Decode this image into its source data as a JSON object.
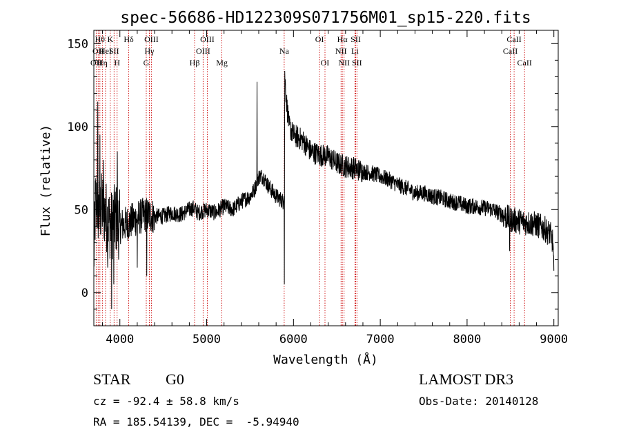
{
  "chart_data": {
    "type": "line",
    "title": "spec-56686-HD122309S071756M01_sp15-220.fits",
    "xlabel": "Wavelength (Å)",
    "ylabel": "Flux (relative)",
    "xlim": [
      3700,
      9050
    ],
    "ylim": [
      -20,
      158
    ],
    "x_ticks": [
      4000,
      5000,
      6000,
      7000,
      8000,
      9000
    ],
    "y_ticks": [
      0,
      50,
      100,
      150
    ],
    "spectrum_anchors": {
      "x": [
        3700,
        3720,
        3760,
        3800,
        3850,
        3900,
        3950,
        4000,
        4100,
        4200,
        4300,
        4400,
        4500,
        4600,
        4700,
        4800,
        4850,
        4900,
        5000,
        5100,
        5200,
        5300,
        5400,
        5500,
        5550,
        5600,
        5650,
        5700,
        5800,
        5880,
        5890,
        5896,
        5900,
        5920,
        5950,
        6000,
        6100,
        6200,
        6300,
        6400,
        6500,
        6600,
        6700,
        6800,
        6900,
        7000,
        7100,
        7200,
        7300,
        7400,
        7500,
        7600,
        7700,
        7800,
        7900,
        8000,
        8100,
        8200,
        8300,
        8400,
        8500,
        8600,
        8700,
        8800,
        8900,
        8960,
        8990,
        9000
      ],
      "y": [
        20,
        55,
        48,
        52,
        45,
        40,
        45,
        40,
        42,
        45,
        47,
        46,
        46,
        48,
        47,
        50,
        51,
        48,
        50,
        48,
        52,
        50,
        55,
        58,
        62,
        70,
        70,
        65,
        58,
        55,
        62,
        50,
        130,
        115,
        100,
        95,
        92,
        85,
        83,
        82,
        78,
        76,
        75,
        73,
        72,
        70,
        68,
        65,
        63,
        60,
        60,
        58,
        57,
        55,
        54,
        52,
        52,
        51,
        50,
        47,
        44,
        43,
        42,
        41,
        38,
        35,
        30,
        10
      ]
    },
    "spikes": [
      {
        "x": 3745,
        "y": 115
      },
      {
        "x": 3770,
        "y": 95
      },
      {
        "x": 3810,
        "y": 80
      },
      {
        "x": 3860,
        "y": 15
      },
      {
        "x": 3905,
        "y": -10
      },
      {
        "x": 3930,
        "y": 5
      },
      {
        "x": 3970,
        "y": 85
      },
      {
        "x": 4200,
        "y": 15
      },
      {
        "x": 4310,
        "y": 10
      },
      {
        "x": 5580,
        "y": 127
      },
      {
        "x": 5895,
        "y": 5
      },
      {
        "x": 8490,
        "y": 25
      }
    ],
    "line_markers": [
      {
        "x": 3727,
        "label": "OII",
        "row": 2
      },
      {
        "x": 3750,
        "label": "OII",
        "row": 1
      },
      {
        "x": 3770,
        "label": "Hθ",
        "row": 0
      },
      {
        "x": 3798,
        "label": "Hη",
        "row": 2
      },
      {
        "x": 3835,
        "label": "HeI",
        "row": 1
      },
      {
        "x": 3889,
        "label": "K",
        "row": 0
      },
      {
        "x": 3933,
        "label": "SII",
        "row": 1
      },
      {
        "x": 3968,
        "label": "H",
        "row": 2
      },
      {
        "x": 4102,
        "label": "Hδ",
        "row": 0
      },
      {
        "x": 4304,
        "label": "G",
        "row": 2
      },
      {
        "x": 4340,
        "label": "Hγ",
        "row": 1
      },
      {
        "x": 4363,
        "label": "OIII",
        "row": 0
      },
      {
        "x": 4861,
        "label": "Hβ",
        "row": 2
      },
      {
        "x": 4959,
        "label": "OIII",
        "row": 1
      },
      {
        "x": 5007,
        "label": "OIII",
        "row": 0
      },
      {
        "x": 5175,
        "label": "Mg",
        "row": 2
      },
      {
        "x": 5893,
        "label": "Na",
        "row": 1
      },
      {
        "x": 6300,
        "label": "OI",
        "row": 0
      },
      {
        "x": 6363,
        "label": "OI",
        "row": 2
      },
      {
        "x": 6548,
        "label": "NII",
        "row": 1
      },
      {
        "x": 6563,
        "label": "Hα",
        "row": 0
      },
      {
        "x": 6583,
        "label": "NII",
        "row": 2
      },
      {
        "x": 6708,
        "label": "Li",
        "row": 1
      },
      {
        "x": 6717,
        "label": "SII",
        "row": 0
      },
      {
        "x": 6731,
        "label": "SII",
        "row": 2
      },
      {
        "x": 8498,
        "label": "CaII",
        "row": 1
      },
      {
        "x": 8542,
        "label": "CaII",
        "row": 0
      },
      {
        "x": 8662,
        "label": "CaII",
        "row": 2
      }
    ],
    "colors": {
      "spectrum": "#000000",
      "marker_line": "#cc0000",
      "axes": "#000000"
    }
  },
  "info": {
    "class_label": "STAR",
    "subclass_label": "G0",
    "velocity": "cz = -92.4 ± 58.8 km/s",
    "coords": "RA = 185.54139, DEC =  -5.94940",
    "survey": "LAMOST DR3",
    "obs_date": "Obs-Date: 20140128"
  }
}
